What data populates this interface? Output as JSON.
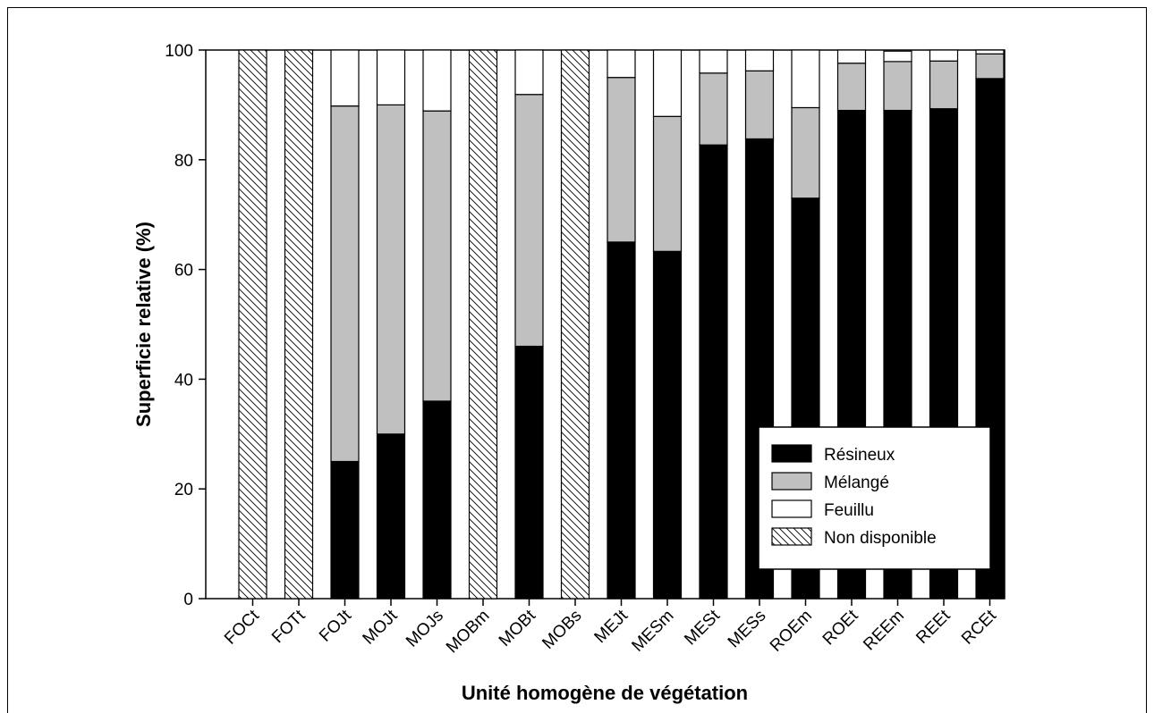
{
  "chart_data": {
    "type": "bar",
    "stacked": true,
    "title": "",
    "xlabel": "Unité homogène de végétation",
    "ylabel": "Superficie relative (%)",
    "ylim": [
      0,
      100
    ],
    "yticks": [
      0,
      20,
      40,
      60,
      80,
      100
    ],
    "grid": false,
    "legend_position": "bottom-right",
    "categories": [
      "FOCt",
      "FOTt",
      "FOJt",
      "MOJt",
      "MOJs",
      "MOBm",
      "MOBt",
      "MOBs",
      "MEJt",
      "MESm",
      "MESt",
      "MESs",
      "ROEm",
      "ROEt",
      "REEm",
      "REEt",
      "RCEt"
    ],
    "series": [
      {
        "name": "Résineux",
        "color": "#000000",
        "pattern": "solid",
        "values": [
          0,
          0,
          25,
          30,
          36,
          0,
          46,
          0,
          65,
          63.3,
          82.7,
          83.8,
          73,
          89,
          89,
          89.3,
          94.8
        ]
      },
      {
        "name": "Mélangé",
        "color": "#c0c0c0",
        "pattern": "solid",
        "values": [
          0,
          0,
          64.8,
          60,
          52.9,
          0,
          45.9,
          0,
          30,
          24.6,
          13.1,
          12.4,
          16.5,
          8.6,
          8.9,
          8.7,
          4.5
        ]
      },
      {
        "name": "Feuillu",
        "color": "#ffffff",
        "pattern": "solid",
        "values": [
          0,
          0,
          10.2,
          10,
          11.1,
          0,
          8.1,
          0,
          5,
          12.1,
          4.2,
          3.8,
          10.5,
          2.4,
          1.9,
          2,
          0.7
        ]
      },
      {
        "name": "Non disponible",
        "color": "#ffffff",
        "pattern": "hatch",
        "values": [
          100,
          100,
          0,
          0,
          0,
          100,
          0,
          100,
          0,
          0,
          0,
          0,
          0,
          0,
          0,
          0,
          0
        ]
      }
    ]
  }
}
